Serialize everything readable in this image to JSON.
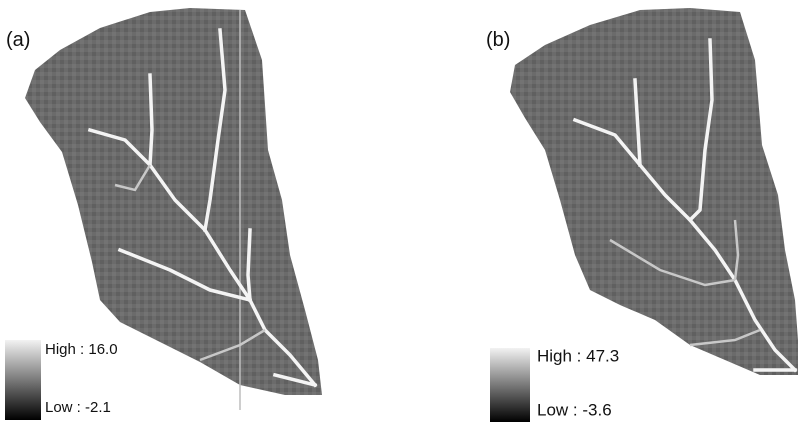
{
  "panels": [
    {
      "label": "(a)",
      "legend": {
        "high": "High : 16.0",
        "low": "Low : -2.1"
      }
    },
    {
      "label": "(b)",
      "legend": {
        "high": "High : 47.3",
        "low": "Low : -3.6"
      }
    }
  ]
}
